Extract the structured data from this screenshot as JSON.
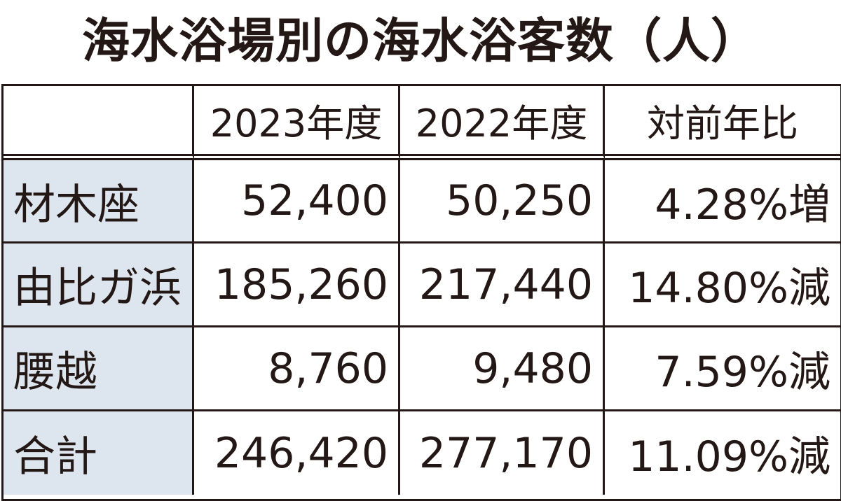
{
  "header": {
    "title": "海水浴場別の海水浴客数（人）"
  },
  "table": {
    "columns": [
      "2023年度",
      "2022年度",
      "対前年比"
    ],
    "rows": [
      [
        "材木座",
        "52,400",
        "50,250",
        "4.28%増"
      ],
      [
        "由比ガ浜",
        "185,260",
        "217,440",
        "14.80%減"
      ],
      [
        "腰越",
        "8,760",
        "9,480",
        "7.59%減"
      ],
      [
        "合計",
        "246,420",
        "277,170",
        "11.09%減"
      ]
    ]
  }
}
